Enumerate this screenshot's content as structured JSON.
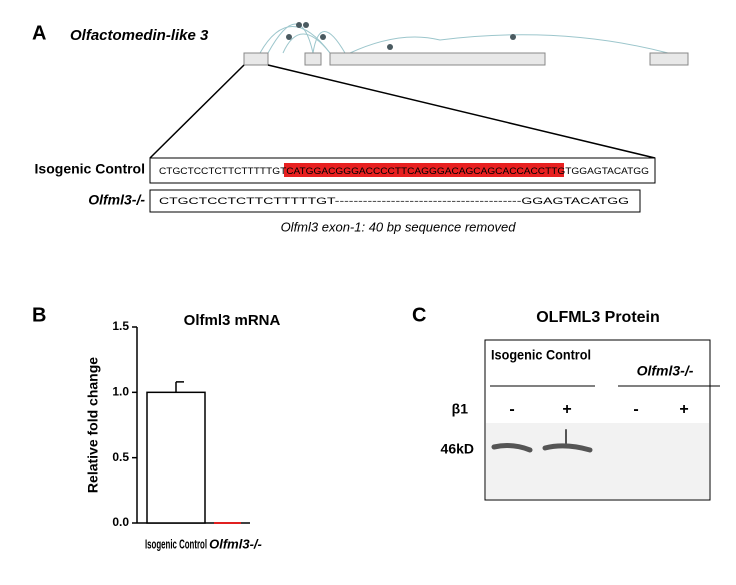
{
  "panel_a": {
    "label": "A",
    "gene": "Olfactomedin-like 3",
    "rows": [
      {
        "name": "Isogenic Control",
        "prefix": "CTGCTCCTCTTCTTTTTGT",
        "middle": "CATGGACGGGACCCCTTCAGGGACAGCAGCACCACCTTGT",
        "suffix": "GGAGTACATGG"
      },
      {
        "name": "Olfml3-/-",
        "prefix": "CTGCTCCTCTTCTTTTTGT",
        "middle": "----------------------------------------",
        "suffix": "GGAGTACATGG"
      }
    ],
    "caption": "Olfml3 exon-1: 40 bp sequence removed"
  },
  "chart_data": {
    "type": "bar",
    "label": "B",
    "title": "Olfml3 mRNA",
    "y_label": "Relative fold change",
    "categories": [
      "Isogenic Control",
      "Olfml3-/-"
    ],
    "values": [
      1.0,
      0.0
    ],
    "errors": [
      0.08,
      0.0
    ],
    "colors": [
      "#ffffff",
      "#e02020"
    ],
    "ylim": [
      0,
      1.5
    ],
    "yticks": [
      {
        "value": 0,
        "label": "0.0"
      },
      0.5,
      {
        "value": 1,
        "label": "1.0"
      },
      1.5
    ]
  },
  "panel_c": {
    "label": "C",
    "title": "OLFML3 Protein",
    "groups": [
      "Isogenic Control",
      "Olfml3-/-"
    ],
    "treatment": "β1",
    "lanes": [
      "-",
      "+",
      "-",
      "+"
    ],
    "marker": "46kD"
  }
}
